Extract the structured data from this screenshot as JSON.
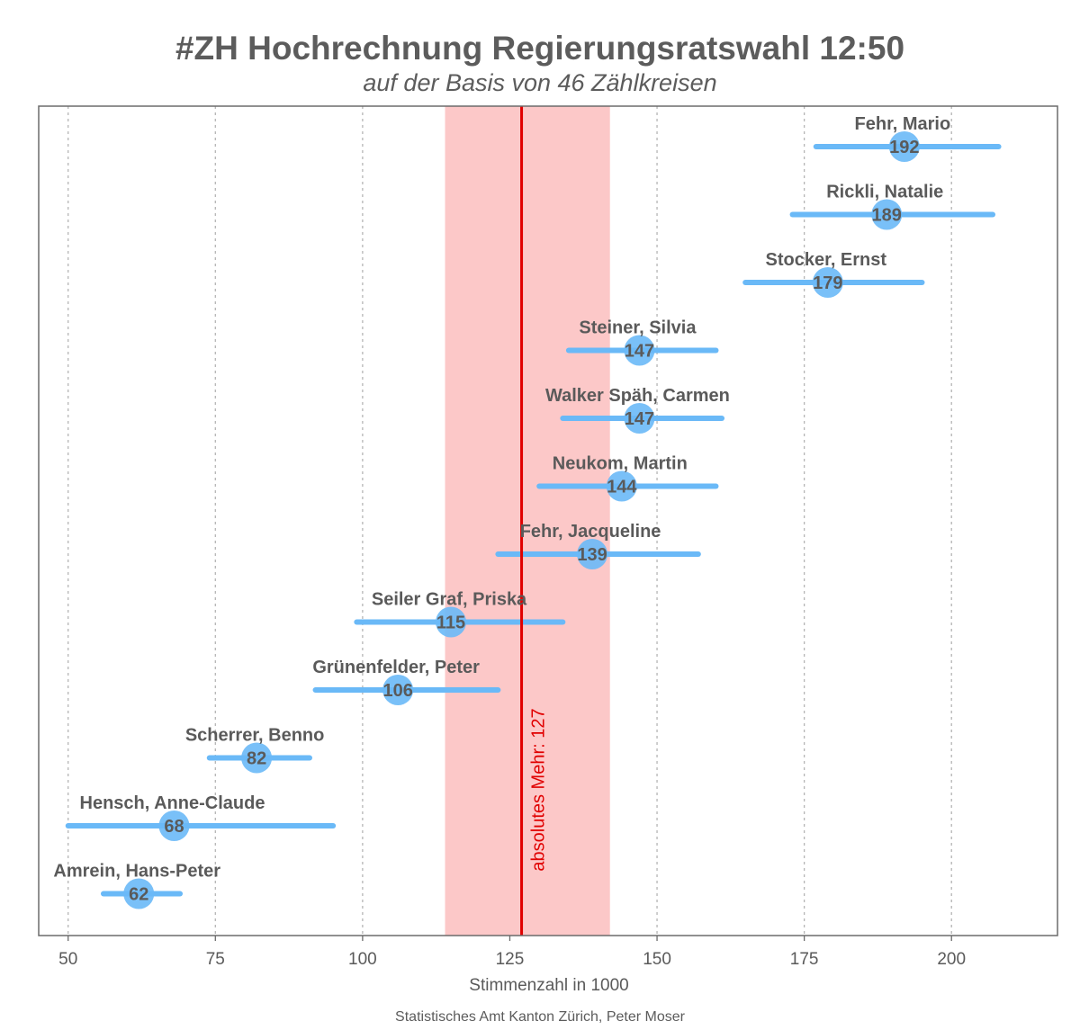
{
  "title": "#ZH Hochrechnung Regierungsratswahl 12:50",
  "subtitle": "auf der Basis von 46 Zählkreisen",
  "source": "Statistisches Amt Kanton Zürich, Peter Moser",
  "colors": {
    "interval": "#6ab9f7",
    "point": "#6ab9f7",
    "band": "#fcc8c8",
    "reference": "#e00000",
    "text": "#5a5a5a",
    "grid": "#b5b5b5",
    "frame": "#6b6b6b"
  },
  "chart_data": {
    "type": "scatter",
    "xlabel": "Stimmenzahl in 1000",
    "ylabel": "",
    "xlim": [
      45,
      218
    ],
    "xticks": [
      50,
      75,
      100,
      125,
      150,
      175,
      200
    ],
    "grid": "vertical-dashed",
    "band": [
      114,
      142
    ],
    "reference_line": {
      "value": 127,
      "label": "absolutes Mehr: 127"
    },
    "candidates": [
      {
        "name": "Fehr, Mario",
        "value": 192,
        "low": 177,
        "high": 208
      },
      {
        "name": "Rickli, Natalie",
        "value": 189,
        "low": 173,
        "high": 207
      },
      {
        "name": "Stocker, Ernst",
        "value": 179,
        "low": 165,
        "high": 195
      },
      {
        "name": "Steiner, Silvia",
        "value": 147,
        "low": 135,
        "high": 160
      },
      {
        "name": "Walker Späh, Carmen",
        "value": 147,
        "low": 134,
        "high": 161
      },
      {
        "name": "Neukom, Martin",
        "value": 144,
        "low": 130,
        "high": 160
      },
      {
        "name": "Fehr, Jacqueline",
        "value": 139,
        "low": 123,
        "high": 157
      },
      {
        "name": "Seiler Graf, Priska",
        "value": 115,
        "low": 99,
        "high": 134
      },
      {
        "name": "Grünenfelder, Peter",
        "value": 106,
        "low": 92,
        "high": 123
      },
      {
        "name": "Scherrer, Benno",
        "value": 82,
        "low": 74,
        "high": 91
      },
      {
        "name": "Hensch, Anne-Claude",
        "value": 68,
        "low": 50,
        "high": 95
      },
      {
        "name": "Amrein, Hans-Peter",
        "value": 62,
        "low": 56,
        "high": 69
      }
    ]
  }
}
